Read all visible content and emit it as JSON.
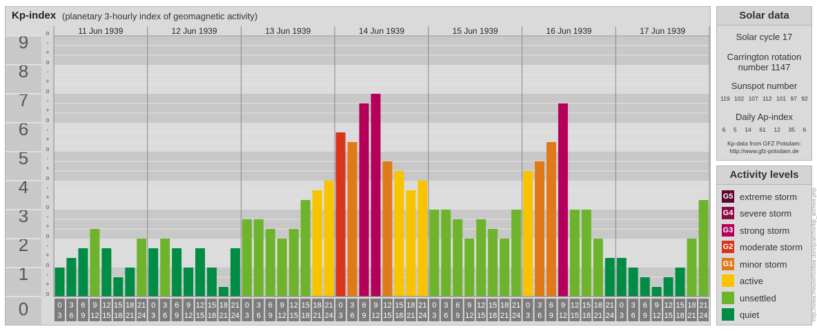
{
  "chart_data": {
    "type": "bar",
    "title": "Kp-index",
    "subtitle": "(planetary 3-hourly index of geomagnetic activity)",
    "ylim": [
      0,
      9
    ],
    "y_ticks": [
      "0",
      "1",
      "2",
      "3",
      "4",
      "5",
      "6",
      "7",
      "8",
      "9"
    ],
    "minor_tick_labels": [
      "o",
      "+",
      "-"
    ],
    "days": [
      "11 Jun 1939",
      "12 Jun 1939",
      "13 Jun 1939",
      "14 Jun 1939",
      "15 Jun 1939",
      "16 Jun 1939",
      "17 Jun 1939"
    ],
    "x_hour_labels": [
      [
        "0",
        "3"
      ],
      [
        "3",
        "6"
      ],
      [
        "6",
        "9"
      ],
      [
        "9",
        "12"
      ],
      [
        "12",
        "15"
      ],
      [
        "15",
        "18"
      ],
      [
        "18",
        "21"
      ],
      [
        "21",
        "24"
      ]
    ],
    "values": [
      1.0,
      1.333,
      1.667,
      2.333,
      1.667,
      0.667,
      1.0,
      2.0,
      1.667,
      2.0,
      1.667,
      1.0,
      1.667,
      1.0,
      0.333,
      1.667,
      2.667,
      2.667,
      2.333,
      2.0,
      2.333,
      3.333,
      3.667,
      4.0,
      5.667,
      5.333,
      6.667,
      7.0,
      4.667,
      4.333,
      3.667,
      4.0,
      3.0,
      3.0,
      2.667,
      2.0,
      2.667,
      2.333,
      2.0,
      3.0,
      4.333,
      4.667,
      5.333,
      6.667,
      3.0,
      3.0,
      2.0,
      1.333,
      1.333,
      1.0,
      0.667,
      0.333,
      0.667,
      1.0,
      2.0,
      3.333
    ],
    "levels": [
      {
        "key": "quiet",
        "color": "#008c45"
      },
      {
        "key": "unsettled",
        "color": "#6db42c"
      },
      {
        "key": "active",
        "color": "#f8c400"
      },
      {
        "key": "G1",
        "color": "#e07a18"
      },
      {
        "key": "G2",
        "color": "#d8361c"
      },
      {
        "key": "G3",
        "color": "#b5005b"
      },
      {
        "key": "G4",
        "color": "#8c0a47"
      },
      {
        "key": "G5",
        "color": "#5a0730"
      }
    ]
  },
  "solar_data": {
    "title": "Solar data",
    "solar_cycle": "Solar cycle 17",
    "carrington_line1": "Carrington rotation",
    "carrington_line2": "number 1147",
    "sunspot_title": "Sunspot number",
    "sunspot_numbers": [
      "119",
      "102",
      "107",
      "112",
      "101",
      "97",
      "92"
    ],
    "ap_title": "Daily Ap-index",
    "ap_values": [
      "6",
      "5",
      "14",
      "61",
      "12",
      "35",
      "6"
    ],
    "credit_line1": "Kp-data from GFZ Potsdam:",
    "credit_line2": "http://www.gfz-potsdam.de"
  },
  "activity_levels": {
    "title": "Activity levels",
    "items": [
      {
        "badge": "G5",
        "label": "extreme storm",
        "color": "#5a0730"
      },
      {
        "badge": "G4",
        "label": "severe storm",
        "color": "#8c0a47"
      },
      {
        "badge": "G3",
        "label": "strong storm",
        "color": "#b5005b"
      },
      {
        "badge": "G2",
        "label": "moderate storm",
        "color": "#d8361c"
      },
      {
        "badge": "G1",
        "label": "minor storm",
        "color": "#e07a18"
      },
      {
        "badge": "",
        "label": "active",
        "color": "#f8c400"
      },
      {
        "badge": "",
        "label": "unsettled",
        "color": "#6db42c"
      },
      {
        "badge": "",
        "label": "quiet",
        "color": "#008c45"
      }
    ]
  },
  "watermark": "http://www.theusertoolbar.de/sfp/archiv/kp_archive.php"
}
